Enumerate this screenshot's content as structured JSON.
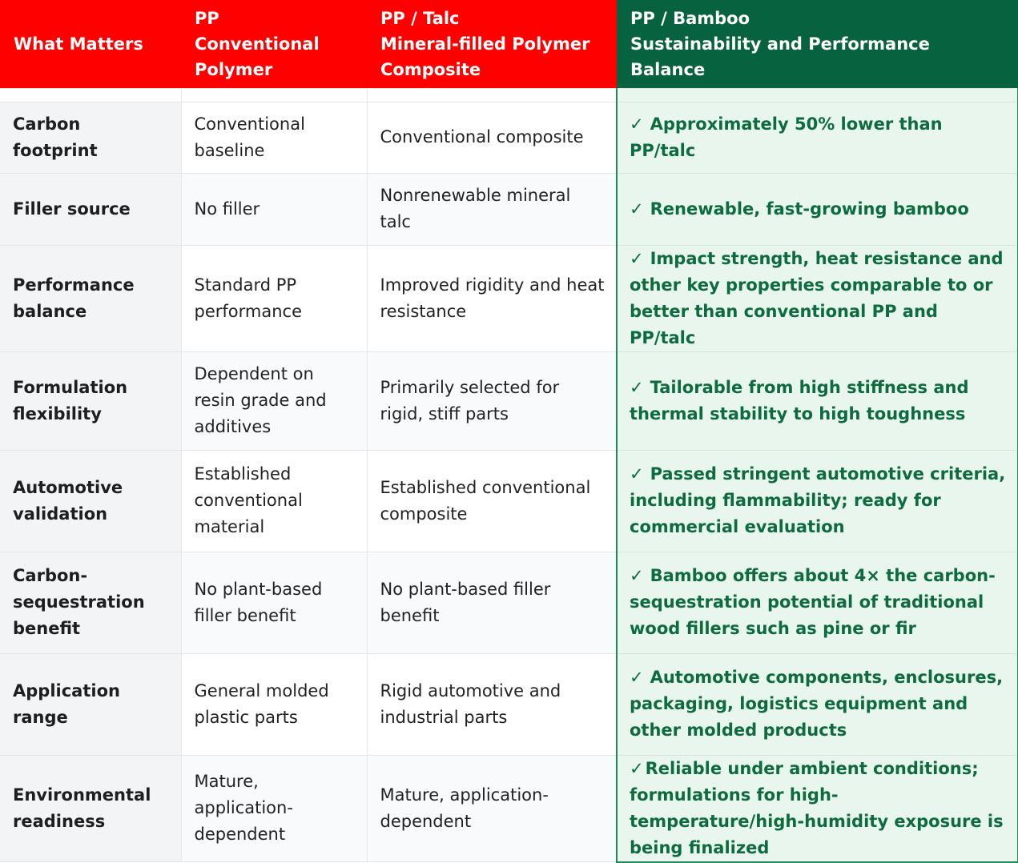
{
  "header": {
    "what_matters": "What Matters",
    "pp_line1": "PP",
    "pp_line2": "Conventional Polymer",
    "talc_line1": "PP / Talc",
    "talc_line2": "Mineral-filled Polymer Composite",
    "bamboo_line1": "PP / Bamboo",
    "bamboo_line2": "Sustainability and Performance Balance"
  },
  "check_mark": "✓",
  "rows": [
    {
      "label": "Carbon footprint",
      "pp": "Conventional baseline",
      "talc": "Conventional composite",
      "bamboo": "Approximately 50% lower than PP/talc"
    },
    {
      "label": "Filler source",
      "pp": "No filler",
      "talc": "Nonrenewable mineral talc",
      "bamboo": "Renewable, fast-growing bamboo"
    },
    {
      "label": "Performance balance",
      "pp": "Standard PP performance",
      "talc": "Improved rigidity and heat resistance",
      "bamboo": "Impact strength, heat resistance and other key properties comparable to or better than conventional PP and PP/talc"
    },
    {
      "label": "Formulation flexibility",
      "pp": "Dependent on resin grade and additives",
      "talc": "Primarily selected for rigid, stiff parts",
      "bamboo": "Tailorable from high stiffness and thermal stability to high toughness"
    },
    {
      "label": "Automotive validation",
      "pp": "Established conventional material",
      "talc": "Established conventional composite",
      "bamboo": "Passed stringent automotive criteria, including flammability; ready for commercial evaluation"
    },
    {
      "label": "Carbon-sequestration benefit",
      "pp": "No plant-based filler benefit",
      "talc": "No plant-based filler benefit",
      "bamboo": "Bamboo offers about 4× the carbon-sequestration potential of traditional wood fillers such as pine or fir"
    },
    {
      "label": "Application range",
      "pp": "General molded plastic parts",
      "talc": "Rigid automotive and industrial parts",
      "bamboo": "Automotive components, enclosures, packaging, logistics equipment and other molded products"
    },
    {
      "label": "Environmental readiness",
      "pp": "Mature, application-dependent",
      "talc": "Mature, application-dependent",
      "bamboo": "Reliable under ambient conditions; formulations for high-temperature/high-humidity exposure is being finalized"
    }
  ],
  "colors": {
    "header_red": "#ff0000",
    "header_green": "#07623f",
    "bamboo_text": "#0d6b3f",
    "bamboo_bg": "#e9f6ee"
  }
}
